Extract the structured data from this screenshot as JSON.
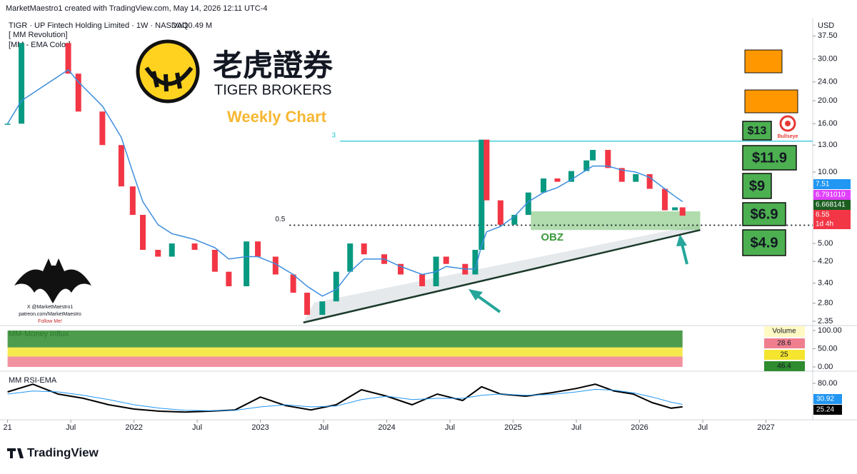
{
  "header": {
    "credit": "MarketMaestro1 created with TradingView.com, May 14, 2026 12:11 UTC-4",
    "symbol": "TIGR · UP Fintech Holding Limited · 1W · NASDAQ",
    "volume": "Vol10.49 M",
    "indicators": [
      "[ MM Revolution]",
      "[MM - EMA Color]"
    ]
  },
  "logo": {
    "chinese": "老虎證券",
    "english": "TIGER BROKERS"
  },
  "watermark": {
    "lines": [
      "X @MarketMaestro1",
      "patreon.com/MarketMaestro",
      "Follow Me!"
    ],
    "icon": "Bullseye"
  },
  "footer": "TradingView",
  "targets": {
    "color": "#4caf50",
    "labels": [
      "$13",
      "$11.9",
      "$9",
      "$6.9",
      "$4.9"
    ]
  },
  "chart_data": [
    {
      "type": "candlestick",
      "title": "Weekly Chart",
      "currency": "USD",
      "log_scale": true,
      "x": [
        2021.0,
        2021.11,
        2021.48,
        2021.56,
        2021.75,
        2021.9,
        2021.99,
        2022.07,
        2022.19,
        2022.3,
        2022.48,
        2022.64,
        2022.75,
        2022.89,
        2022.98,
        2023.12,
        2023.26,
        2023.37,
        2023.49,
        2023.6,
        2023.71,
        2023.82,
        2023.98,
        2024.11,
        2024.28,
        2024.39,
        2024.47,
        2024.62,
        2024.7,
        2024.75,
        2024.79,
        2024.9,
        2025.01,
        2025.12,
        2025.24,
        2025.35,
        2025.46,
        2025.58,
        2025.63,
        2025.75,
        2025.86,
        2025.97,
        2026.08,
        2026.2,
        2026.28,
        2026.34
      ],
      "series": [
        {
          "color": "#089981",
          "down_color": "#f23645",
          "values": [
            16,
            35,
            26,
            18,
            13,
            8.7,
            6.6,
            4.7,
            4.4,
            5,
            4.7,
            3.8,
            3.3,
            5.1,
            4.4,
            3.7,
            3.1,
            2.5,
            2.85,
            3.8,
            5,
            4.5,
            4.1,
            3.7,
            3.3,
            4.4,
            4.1,
            3.7,
            4.7,
            13.7,
            7.6,
            6,
            6.6,
            8.2,
            9.4,
            9.1,
            10.1,
            11.2,
            12.4,
            10.4,
            9.1,
            9.8,
            8.5,
            6.9,
            7.1,
            6.55
          ]
        },
        {
          "color": "#3c8dde",
          "values": [
            16,
            20,
            27,
            24,
            19,
            14,
            10,
            7.5,
            6,
            5.5,
            5.2,
            4.8,
            4.3,
            4.4,
            4.4,
            4.1,
            3.7,
            3.3,
            3.0,
            3.2,
            3.8,
            4.3,
            4.3,
            4.0,
            3.7,
            3.8,
            4.0,
            3.9,
            3.9,
            4.9,
            5.6,
            5.9,
            6.5,
            7.5,
            8.2,
            8.6,
            9.3,
            10.2,
            10.6,
            10.6,
            10.2,
            10.0,
            9.5,
            8.5,
            7.9,
            7.51
          ]
        }
      ],
      "xlim": [
        2020.94,
        2027.37
      ],
      "xticks": [
        {
          "value": 2021,
          "label": "21"
        },
        {
          "value": 2021.5,
          "label": "Jul"
        },
        2022,
        {
          "value": 2022.5,
          "label": "Jul"
        },
        2023,
        {
          "value": 2023.5,
          "label": "Jul"
        },
        2024,
        {
          "value": 2024.5,
          "label": "Jul"
        },
        2025,
        {
          "value": 2025.5,
          "label": "Jul"
        },
        2026,
        {
          "value": 2026.5,
          "label": "Jul"
        },
        2027
      ],
      "ylim": [
        2.27,
        44.7
      ],
      "yticks": [
        {
          "value": 37.5,
          "label": "37.50"
        },
        {
          "value": 30,
          "label": "30.00"
        },
        {
          "value": 24,
          "label": "24.00"
        },
        {
          "value": 20,
          "label": "20.00"
        },
        {
          "value": 16,
          "label": "16.00"
        },
        {
          "value": 13,
          "label": "13.00"
        },
        {
          "value": 10,
          "label": "10.00"
        },
        {
          "value": 5,
          "label": "5.00"
        },
        {
          "value": 4.2,
          "label": "4.20"
        },
        {
          "value": 3.4,
          "label": "3.40"
        },
        {
          "value": 2.8,
          "label": "2.80"
        },
        {
          "value": 2.35,
          "label": "2.35"
        }
      ],
      "levels": [
        {
          "label": "3",
          "value": 13.5,
          "start": 2023.63,
          "color": "#26c6da",
          "style": "solid"
        },
        {
          "label": "0.5",
          "value": 5.97,
          "start": 2023.23,
          "color": "#131722",
          "style": "dotted"
        }
      ],
      "zone": {
        "label": "OBZ",
        "low": 5.7,
        "high": 6.83,
        "x": [
          2025.14,
          2026.48
        ],
        "color": "#7cc576"
      },
      "trendline": {
        "x": [
          2023.34,
          2026.48
        ],
        "y": [
          2.32,
          5.7
        ],
        "color": "#1b3a2a"
      },
      "price_labels": [
        {
          "value": 7.51,
          "label": "7.51",
          "color": "#2196f3"
        },
        {
          "value": 6.79101,
          "label": "6.791010",
          "color": "#e040fb"
        },
        {
          "value": 6.668141,
          "label": "6.668141",
          "color": "#1b5e20"
        },
        {
          "value": 6.55,
          "label": "6.55",
          "color": "#f23645",
          "note": "1d 4h"
        }
      ]
    },
    {
      "type": "stacked_bar",
      "title": "MM-Money Influx",
      "legend_title": "Volume",
      "series": [
        {
          "color": "#ef7f8f",
          "values": [
            28.6
          ]
        },
        {
          "color": "#f5e52e",
          "values": [
            25
          ]
        },
        {
          "color": "#2e8b2e",
          "values": [
            46.4
          ]
        }
      ],
      "ylim": [
        0,
        100
      ],
      "yticks": [
        {
          "value": 100,
          "label": "100.00"
        },
        {
          "value": 50,
          "label": "50.00"
        },
        {
          "value": 0,
          "label": "0.00"
        }
      ]
    },
    {
      "type": "line",
      "title": "MM RSI-EMA",
      "x": [
        2021.0,
        2021.2,
        2021.4,
        2021.6,
        2021.8,
        2022.0,
        2022.2,
        2022.4,
        2022.6,
        2022.8,
        2023.0,
        2023.2,
        2023.4,
        2023.6,
        2023.8,
        2024.0,
        2024.2,
        2024.4,
        2024.6,
        2024.75,
        2024.9,
        2025.1,
        2025.3,
        2025.5,
        2025.65,
        2025.8,
        2025.95,
        2026.1,
        2026.25,
        2026.34
      ],
      "series": [
        {
          "color": "#000000",
          "values": [
            60,
            78,
            55,
            45,
            30,
            20,
            15,
            13,
            15,
            18,
            48,
            28,
            18,
            30,
            65,
            50,
            30,
            55,
            40,
            72,
            55,
            50,
            58,
            68,
            78,
            62,
            55,
            35,
            22,
            25.24
          ]
        },
        {
          "color": "#2196f3",
          "values": [
            55,
            62,
            60,
            52,
            42,
            30,
            22,
            17,
            16,
            17,
            25,
            30,
            25,
            27,
            42,
            50,
            42,
            45,
            45,
            52,
            55,
            52,
            54,
            60,
            66,
            64,
            58,
            48,
            36,
            30.92
          ]
        }
      ],
      "ylim": [
        0,
        100
      ],
      "yticks": [
        {
          "value": 80,
          "label": "80.00"
        }
      ]
    }
  ]
}
